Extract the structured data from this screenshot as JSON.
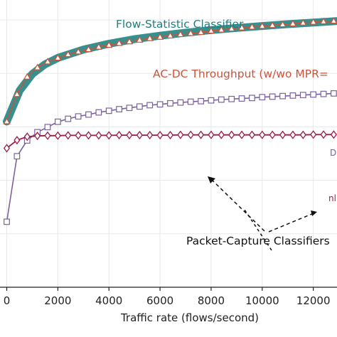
{
  "chart_data": {
    "type": "line",
    "xlabel": "Traffic rate (flows/second)",
    "x_ticks": [
      0,
      2000,
      4000,
      6000,
      8000,
      10000,
      12000
    ],
    "xlim": [
      -300,
      13000
    ],
    "ylim": [
      0,
      100
    ],
    "grid": true,
    "colors": {
      "flow_band": "#2a8a88",
      "acdc": "#c9553c",
      "capture_a": "#7a62a0",
      "capture_b": "#9b1f45"
    },
    "series": [
      {
        "key": "flow",
        "marker": "none",
        "x": [
          0,
          500,
          1000,
          1500,
          2000,
          3000,
          4000,
          5000,
          6000,
          7000,
          8000,
          9000,
          10000,
          11000,
          12000,
          13000
        ],
        "y": [
          62.0,
          73.5,
          79.8,
          83.4,
          85.8,
          88.9,
          91.1,
          92.8,
          94.1,
          95.2,
          96.2,
          97.0,
          97.7,
          98.4,
          99.0,
          99.6
        ]
      },
      {
        "key": "acdc",
        "marker": "triangle",
        "x": [
          0,
          400,
          800,
          1200,
          1600,
          2000,
          2400,
          2800,
          3200,
          3600,
          4000,
          4400,
          4800,
          5200,
          5600,
          6000,
          6400,
          6800,
          7200,
          7600,
          8000,
          8400,
          8800,
          9200,
          9600,
          10000,
          10400,
          10800,
          11200,
          11600,
          12000,
          12400,
          12800
        ],
        "y": [
          62.0,
          72.2,
          78.7,
          82.2,
          84.4,
          85.8,
          87.1,
          88.1,
          89.0,
          89.9,
          90.6,
          91.3,
          91.9,
          92.5,
          93.1,
          93.6,
          94.1,
          94.6,
          95.0,
          95.4,
          95.9,
          96.3,
          96.7,
          97.1,
          97.4,
          97.7,
          98.0,
          98.3,
          98.6,
          98.9,
          99.2,
          99.4,
          99.6
        ]
      },
      {
        "key": "capture_a",
        "marker": "square",
        "x": [
          0,
          400,
          800,
          1200,
          1600,
          2000,
          2400,
          2800,
          3200,
          3600,
          4000,
          4400,
          4800,
          5200,
          5600,
          6000,
          6400,
          6800,
          7200,
          7600,
          8000,
          8400,
          8800,
          9200,
          9600,
          10000,
          10400,
          10800,
          11200,
          11600,
          12000,
          12400,
          12800
        ],
        "y": [
          24.5,
          49.0,
          54.9,
          58.0,
          59.9,
          61.9,
          63.0,
          63.9,
          64.6,
          65.4,
          66.0,
          66.6,
          67.1,
          67.6,
          68.1,
          68.4,
          68.8,
          69.1,
          69.4,
          69.6,
          69.9,
          70.2,
          70.4,
          70.6,
          70.8,
          71.1,
          71.3,
          71.5,
          71.7,
          71.9,
          72.1,
          72.3,
          72.5
        ]
      },
      {
        "key": "capture_b",
        "marker": "diamond",
        "x": [
          0,
          400,
          800,
          1200,
          1600,
          2000,
          2400,
          2800,
          3200,
          3600,
          4000,
          4400,
          4800,
          5200,
          5600,
          6000,
          6400,
          6800,
          7200,
          7600,
          8000,
          8400,
          8800,
          9200,
          9600,
          10000,
          10400,
          10800,
          11200,
          11600,
          12000,
          12400,
          12800
        ],
        "y": [
          52.0,
          55.0,
          56.3,
          56.6,
          56.7,
          56.7,
          56.8,
          56.8,
          56.8,
          56.8,
          56.8,
          56.9,
          56.9,
          56.9,
          56.9,
          56.9,
          56.9,
          57.0,
          57.0,
          57.0,
          57.0,
          57.0,
          57.0,
          57.0,
          57.0,
          57.0,
          57.0,
          57.0,
          57.0,
          57.0,
          57.1,
          57.1,
          57.1
        ]
      }
    ],
    "annotations": {
      "flow_label": "Flow-Statistic Classifier",
      "acdc_label": "AC-DC Throughput (w/wo MPR=",
      "capture_label": "Packet-Capture Classifiers",
      "edge_label_a": "D",
      "edge_label_b": "nl"
    }
  }
}
